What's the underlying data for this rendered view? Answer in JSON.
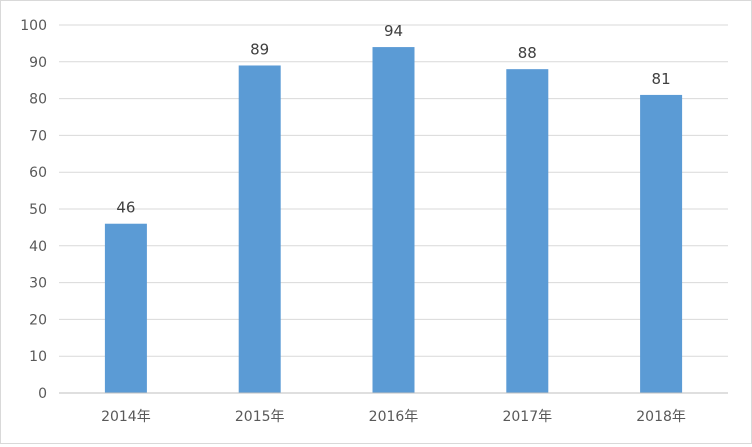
{
  "chart_data": {
    "type": "bar",
    "categories": [
      "2014年",
      "2015年",
      "2016年",
      "2017年",
      "2018年"
    ],
    "values": [
      46,
      89,
      94,
      88,
      81
    ],
    "title": "",
    "xlabel": "",
    "ylabel": "",
    "ylim": [
      0,
      100
    ],
    "yticks": [
      0,
      10,
      20,
      30,
      40,
      50,
      60,
      70,
      80,
      90,
      100
    ],
    "grid": true,
    "legend": "none",
    "bar_color": "#5b9bd5",
    "grid_color": "#d9d9d9"
  }
}
